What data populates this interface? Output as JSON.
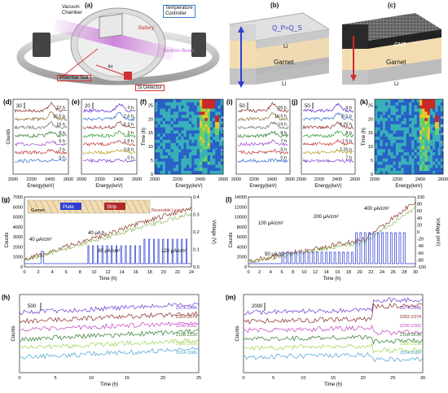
{
  "panels": {
    "a": {
      "label": "(a)",
      "vacuum_chamber": "Vacuum\nChamber",
      "temperature_controller": "Temperature\nController",
      "battery": "Battery",
      "neutron_beam": "Neutron Beam",
      "potential_stat": "Potential Stat",
      "si_detector": "Si Detector",
      "isotope_3h": "³H",
      "colors": {
        "chamber": "#b8b8b8",
        "beam": "#c86bd6",
        "label_box": "#e03030",
        "blue_box": "#3a7bd5"
      }
    },
    "b": {
      "label": "(b)",
      "top_layer": "Li",
      "middle_layer": "Garnet",
      "bottom_layer": "Li",
      "annotation": "Q_P=Q_S",
      "arrow_color": "#2d3fd0"
    },
    "c": {
      "label": "(c)",
      "top_layer": "CNT",
      "middle_layer": "Garnet",
      "bottom_layer": "Li",
      "arrow_color": "#d12b2b"
    },
    "d": {
      "label": "(d)",
      "scale": "30",
      "xlabel": "Energy(keV)",
      "ylabel": "Counts",
      "xticks": [
        "2000",
        "2200",
        "2400",
        "2600"
      ],
      "traces": [
        {
          "name": "22 h",
          "color": "#8b2a2a"
        },
        {
          "name": "16.5 h",
          "color": "#8b6d2a"
        },
        {
          "name": "16 h",
          "color": "#6a6a6a"
        },
        {
          "name": "8 h",
          "color": "#2b7a2b"
        },
        {
          "name": "6 h",
          "color": "#9a4ad0"
        },
        {
          "name": "2 h",
          "color": "#c03030"
        },
        {
          "name": "0 h",
          "color": "#3a6ad0"
        }
      ]
    },
    "e": {
      "label": "(e)",
      "scale": "20",
      "xlabel": "Energy(keV)",
      "xticks": [
        "2000",
        "2200",
        "2400",
        "2600"
      ],
      "traces": [
        {
          "name": "3 h",
          "color": "#5a2ad0"
        },
        {
          "name": "2.6 h",
          "color": "#2a6ad0"
        },
        {
          "name": "2.3 h",
          "color": "#8b2a2a"
        },
        {
          "name": "2 h",
          "color": "#2b9a2b"
        },
        {
          "name": "1.5 h",
          "color": "#c03030"
        },
        {
          "name": "0.8 h",
          "color": "#b0a020"
        },
        {
          "name": "0 h",
          "color": "#7a3ad0"
        }
      ]
    },
    "f": {
      "label": "(f)",
      "xlabel": "Energy(keV)",
      "ylabel": "Time (h)",
      "xticks": [
        "2000",
        "2200",
        "2400",
        "2600"
      ],
      "yticks": [
        "0",
        "5",
        "10",
        "15",
        "20",
        "25"
      ],
      "colorbar": [
        "30",
        "20",
        "10",
        "0"
      ]
    },
    "i": {
      "label": "(i)",
      "scale": "50",
      "xlabel": "Energy(keV)",
      "xticks": [
        "2000",
        "2200",
        "2400",
        "2600"
      ],
      "traces": [
        {
          "name": "26 h",
          "color": "#8b2a2a"
        },
        {
          "name": "19.5 h",
          "color": "#8b6d2a"
        },
        {
          "name": "19 h",
          "color": "#6a6a6a"
        },
        {
          "name": "8 h",
          "color": "#2b7a2b"
        },
        {
          "name": "7 h",
          "color": "#9a4ad0"
        },
        {
          "name": "5 h",
          "color": "#c03030"
        },
        {
          "name": "0 h",
          "color": "#3a6ad0"
        }
      ]
    },
    "j": {
      "label": "(j)",
      "scale": "50",
      "xlabel": "Energy(keV)",
      "xticks": [
        "2000",
        "2200",
        "2400",
        "2600"
      ],
      "traces": [
        {
          "name": "9 h",
          "color": "#5a2ad0"
        },
        {
          "name": "8.5 h",
          "color": "#2a6ad0"
        },
        {
          "name": "8.25 h",
          "color": "#8b2a2a"
        },
        {
          "name": "8 h",
          "color": "#2b9a2b"
        },
        {
          "name": "7.5 h",
          "color": "#c03030"
        },
        {
          "name": "7.25 h",
          "color": "#b0a020"
        },
        {
          "name": "7 h",
          "color": "#7a3ad0"
        }
      ]
    },
    "k": {
      "label": "(k)",
      "xlabel": "Energy(keV)",
      "ylabel": "Time (h)",
      "xticks": [
        "2000",
        "2200",
        "2400",
        "2600"
      ],
      "yticks": [
        "0",
        "5",
        "10",
        "15",
        "20",
        "25"
      ],
      "colorbar": [
        "90",
        "60",
        "30",
        "0",
        "-30"
      ]
    },
    "g": {
      "label": "(g)",
      "ylabel": "Counts",
      "y2label": "Voltage (V)",
      "xlabel": "Time (h)",
      "xticks": [
        "0",
        "2",
        "4",
        "6",
        "8",
        "10",
        "12",
        "14",
        "16",
        "18",
        "20",
        "22",
        "24"
      ],
      "yticks": [
        "0",
        "1000",
        "2000",
        "3000",
        "4000",
        "5000",
        "6000",
        "7000"
      ],
      "y2ticks": [
        "0.0",
        "0.1",
        "0.2",
        "0.3",
        "0.4"
      ],
      "plate": "Plate",
      "strip": "Strip",
      "garnet": "Garnet",
      "reversible_layer": "Reversible Layer",
      "currents": [
        "40 μA/cm²",
        "40 μA h",
        "80 μA/cm²",
        "120 μA/cm²"
      ]
    },
    "l": {
      "label": "(l)",
      "ylabel": "Counts",
      "y2label": "Voltage (mV)",
      "xlabel": "Time (h)",
      "xticks": [
        "0",
        "2",
        "4",
        "6",
        "8",
        "10",
        "12",
        "14",
        "16",
        "18",
        "20",
        "22",
        "24",
        "26",
        "28",
        "30"
      ],
      "yticks": [
        "0",
        "2000",
        "4000",
        "6000",
        "8000",
        "10000",
        "12000",
        "14000"
      ],
      "y2ticks": [
        "-100",
        "-80",
        "-60",
        "-40",
        "-20",
        "0",
        "20",
        "40",
        "60",
        "80",
        "100"
      ],
      "currents": [
        "100 μA/cm²",
        "200 μA/cm²",
        "400 μA/cm²",
        "50 μA h"
      ]
    },
    "h": {
      "label": "(h)",
      "scale": "500",
      "ylabel": "Counts",
      "xlabel": "Time (h)",
      "xticks": [
        "0",
        "5",
        "10",
        "15",
        "20",
        "25"
      ],
      "bands": [
        {
          "name": "2374-2446",
          "color": "#6a3ad0"
        },
        {
          "name": "2302-2374",
          "color": "#8b2a2a"
        },
        {
          "name": "2230-2302",
          "color": "#c040c0"
        },
        {
          "name": "2158-2230",
          "color": "#2b7a2b"
        },
        {
          "name": "2086-2158",
          "color": "#9ad04a"
        },
        {
          "name": "2014-2086",
          "color": "#4aa0d0"
        }
      ]
    },
    "m": {
      "label": "(m)",
      "scale": "2000",
      "ylabel": "Counts",
      "xlabel": "Time (h)",
      "xticks": [
        "0",
        "5",
        "10",
        "15",
        "20",
        "25",
        "30"
      ],
      "bands": [
        {
          "name": "2374-2446",
          "color": "#6a3ad0"
        },
        {
          "name": "2302-2374",
          "color": "#8b2a2a"
        },
        {
          "name": "2230-2302",
          "color": "#c040c0"
        },
        {
          "name": "2158-2230",
          "color": "#2b7a2b"
        },
        {
          "name": "2086-2158",
          "color": "#9ad04a"
        },
        {
          "name": "2014-2086",
          "color": "#4aa0d0"
        }
      ]
    }
  }
}
